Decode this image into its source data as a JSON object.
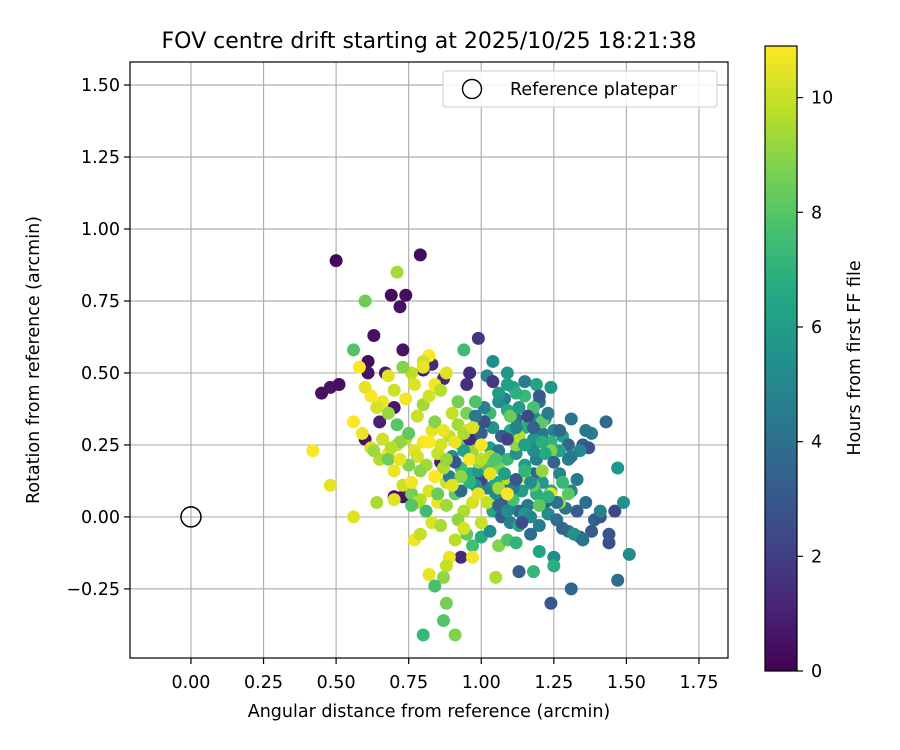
{
  "chart_data": {
    "type": "scatter",
    "title": "FOV centre drift starting at 2025/10/25 18:21:38",
    "xlabel": "Angular distance from reference (arcmin)",
    "ylabel": "Rotation from reference (arcmin)",
    "xlim": [
      -0.21,
      1.85
    ],
    "ylim": [
      -0.49,
      1.58
    ],
    "xticks": [
      "0.00",
      "0.25",
      "0.50",
      "0.75",
      "1.00",
      "1.25",
      "1.50",
      "1.75"
    ],
    "xtick_values": [
      0,
      0.25,
      0.5,
      0.75,
      1.0,
      1.25,
      1.5,
      1.75
    ],
    "yticks": [
      "−0.25",
      "0.00",
      "0.25",
      "0.50",
      "0.75",
      "1.00",
      "1.25",
      "1.50"
    ],
    "ytick_values": [
      -0.25,
      0,
      0.25,
      0.5,
      0.75,
      1.0,
      1.25,
      1.5
    ],
    "grid": true,
    "legend": {
      "position": "top-right",
      "entries": [
        "Reference platepar"
      ]
    },
    "reference_point": {
      "x": 0.0,
      "y": 0.0,
      "label": "Reference platepar"
    },
    "colorbar": {
      "label": "Hours from first FF file",
      "range": [
        0,
        10.9
      ],
      "ticks": [
        "0",
        "2",
        "4",
        "6",
        "8",
        "10"
      ],
      "tick_values": [
        0,
        2,
        4,
        6,
        8,
        10
      ],
      "colormap": [
        "#440154",
        "#482475",
        "#414487",
        "#355f8d",
        "#2a788e",
        "#21918c",
        "#22a884",
        "#44bf70",
        "#7ad151",
        "#bddf26",
        "#fde725"
      ]
    },
    "points": [
      [
        0.5,
        0.89,
        0.2
      ],
      [
        0.79,
        0.91,
        0.3
      ],
      [
        0.69,
        0.77,
        0.3
      ],
      [
        0.74,
        0.77,
        0.4
      ],
      [
        0.72,
        0.73,
        0.5
      ],
      [
        0.63,
        0.63,
        0.5
      ],
      [
        0.61,
        0.54,
        0.3
      ],
      [
        0.73,
        0.58,
        0.6
      ],
      [
        0.45,
        0.43,
        0.5
      ],
      [
        0.48,
        0.45,
        0.6
      ],
      [
        0.51,
        0.46,
        0.4
      ],
      [
        0.61,
        0.5,
        0.6
      ],
      [
        0.67,
        0.5,
        0.8
      ],
      [
        0.7,
        0.38,
        0.7
      ],
      [
        0.65,
        0.33,
        1.0
      ],
      [
        0.6,
        0.27,
        0.5
      ],
      [
        0.8,
        0.51,
        0.9
      ],
      [
        0.87,
        0.48,
        1.2
      ],
      [
        0.83,
        0.53,
        1.3
      ],
      [
        0.95,
        0.46,
        1.5
      ],
      [
        0.99,
        0.62,
        1.8
      ],
      [
        0.96,
        0.5,
        1.4
      ],
      [
        0.7,
        0.07,
        0.4
      ],
      [
        0.73,
        0.07,
        0.6
      ],
      [
        0.86,
        0.19,
        1.0
      ],
      [
        0.93,
        -0.14,
        1.2
      ],
      [
        1.13,
        -0.19,
        3.3
      ],
      [
        1.24,
        -0.3,
        3.0
      ],
      [
        1.31,
        -0.25,
        3.6
      ],
      [
        1.47,
        -0.22,
        3.9
      ],
      [
        1.51,
        -0.13,
        5.3
      ],
      [
        1.47,
        0.17,
        5.7
      ],
      [
        1.46,
        0.02,
        2.3
      ],
      [
        1.44,
        -0.09,
        2.6
      ],
      [
        1.49,
        0.05,
        5.5
      ],
      [
        1.43,
        0.33,
        3.8
      ],
      [
        1.38,
        0.29,
        4.6
      ],
      [
        1.36,
        0.3,
        4.3
      ],
      [
        1.35,
        0.25,
        3.4
      ],
      [
        1.31,
        0.34,
        4.2
      ],
      [
        1.24,
        0.45,
        5.9
      ],
      [
        1.19,
        0.46,
        6.4
      ],
      [
        1.15,
        0.47,
        4.6
      ],
      [
        1.09,
        0.5,
        5.7
      ],
      [
        1.04,
        0.54,
        5.4
      ],
      [
        1.02,
        0.49,
        5.0
      ],
      [
        1.04,
        0.47,
        1.7
      ],
      [
        1.08,
        0.41,
        4.5
      ],
      [
        1.11,
        0.45,
        6.5
      ],
      [
        1.2,
        0.4,
        4.0
      ],
      [
        1.18,
        0.35,
        5.2
      ],
      [
        1.22,
        0.34,
        5.8
      ],
      [
        1.25,
        0.3,
        4.9
      ],
      [
        1.28,
        0.28,
        6.1
      ],
      [
        1.3,
        0.25,
        3.7
      ],
      [
        1.33,
        0.13,
        4.5
      ],
      [
        1.31,
        0.09,
        5.0
      ],
      [
        1.29,
        0.03,
        4.1
      ],
      [
        1.33,
        0.02,
        3.2
      ],
      [
        1.36,
        0.05,
        3.9
      ],
      [
        1.39,
        -0.01,
        3.5
      ],
      [
        1.41,
        0.0,
        2.9
      ],
      [
        1.38,
        -0.05,
        3.1
      ],
      [
        1.34,
        -0.07,
        3.8
      ],
      [
        1.3,
        -0.05,
        4.4
      ],
      [
        1.25,
        -0.14,
        5.3
      ],
      [
        1.2,
        -0.12,
        6.3
      ],
      [
        1.25,
        -0.17,
        6.8
      ],
      [
        1.18,
        -0.19,
        7.2
      ],
      [
        1.22,
        0.05,
        3.3
      ],
      [
        1.19,
        0.08,
        6.9
      ],
      [
        1.16,
        0.04,
        4.3
      ],
      [
        1.13,
        0.02,
        3.7
      ],
      [
        1.1,
        0.04,
        4.8
      ],
      [
        1.07,
        0.06,
        2.5
      ],
      [
        1.05,
        0.08,
        5.1
      ],
      [
        1.02,
        0.1,
        4.9
      ],
      [
        1.0,
        0.13,
        2.2
      ],
      [
        0.98,
        0.11,
        5.6
      ],
      [
        0.96,
        0.15,
        6.7
      ],
      [
        0.93,
        0.17,
        7.5
      ],
      [
        0.9,
        0.21,
        5.2
      ],
      [
        0.93,
        0.25,
        8.5
      ],
      [
        0.97,
        0.27,
        4.0
      ],
      [
        1.0,
        0.29,
        3.4
      ],
      [
        1.03,
        0.24,
        6.0
      ],
      [
        1.06,
        0.23,
        4.2
      ],
      [
        1.09,
        0.2,
        7.3
      ],
      [
        1.12,
        0.22,
        5.5
      ],
      [
        1.15,
        0.18,
        6.1
      ],
      [
        1.18,
        0.15,
        3.6
      ],
      [
        1.21,
        0.12,
        5.9
      ],
      [
        1.24,
        0.09,
        6.4
      ],
      [
        1.27,
        0.15,
        5.0
      ],
      [
        1.3,
        0.2,
        4.7
      ],
      [
        1.27,
        0.23,
        6.2
      ],
      [
        1.24,
        0.26,
        7.0
      ],
      [
        1.21,
        0.29,
        4.4
      ],
      [
        1.18,
        0.27,
        5.6
      ],
      [
        1.15,
        0.31,
        6.8
      ],
      [
        1.12,
        0.34,
        4.1
      ],
      [
        1.09,
        0.37,
        6.6
      ],
      [
        1.06,
        0.4,
        5.3
      ],
      [
        1.03,
        0.36,
        7.4
      ],
      [
        1.01,
        0.38,
        4.8
      ],
      [
        0.98,
        0.4,
        7.8
      ],
      [
        0.95,
        0.36,
        8.7
      ],
      [
        0.92,
        0.32,
        9.4
      ],
      [
        0.89,
        0.28,
        9.9
      ],
      [
        0.86,
        0.25,
        10.2
      ],
      [
        0.83,
        0.3,
        10.5
      ],
      [
        0.8,
        0.26,
        10.8
      ],
      [
        0.77,
        0.23,
        10.4
      ],
      [
        0.74,
        0.27,
        9.8
      ],
      [
        0.71,
        0.25,
        10.1
      ],
      [
        0.68,
        0.22,
        10.7
      ],
      [
        0.65,
        0.2,
        9.6
      ],
      [
        0.62,
        0.24,
        10.3
      ],
      [
        0.59,
        0.29,
        10.6
      ],
      [
        0.56,
        0.33,
        10.9
      ],
      [
        0.42,
        0.23,
        10.8
      ],
      [
        0.48,
        0.11,
        10.5
      ],
      [
        0.56,
        0.0,
        10.4
      ],
      [
        0.64,
        0.05,
        9.5
      ],
      [
        0.68,
        0.2,
        8.5
      ],
      [
        0.7,
        0.16,
        10.6
      ],
      [
        0.72,
        0.26,
        9.1
      ],
      [
        0.75,
        0.29,
        8.2
      ],
      [
        0.78,
        0.35,
        10.0
      ],
      [
        0.8,
        0.39,
        9.3
      ],
      [
        0.82,
        0.42,
        10.2
      ],
      [
        0.84,
        0.46,
        10.7
      ],
      [
        0.86,
        0.44,
        9.7
      ],
      [
        0.88,
        0.5,
        10.4
      ],
      [
        0.82,
        0.56,
        10.9
      ],
      [
        0.8,
        0.54,
        10.1
      ],
      [
        0.76,
        0.5,
        9.8
      ],
      [
        0.73,
        0.52,
        8.9
      ],
      [
        0.7,
        0.44,
        10.0
      ],
      [
        0.68,
        0.49,
        10.4
      ],
      [
        0.66,
        0.4,
        10.6
      ],
      [
        0.64,
        0.38,
        10.2
      ],
      [
        0.62,
        0.42,
        10.8
      ],
      [
        0.6,
        0.45,
        10.5
      ],
      [
        0.58,
        0.52,
        10.9
      ],
      [
        0.56,
        0.58,
        7.9
      ],
      [
        0.6,
        0.75,
        8.5
      ],
      [
        0.71,
        0.85,
        9.4
      ],
      [
        0.68,
        0.36,
        9.2
      ],
      [
        0.71,
        0.32,
        8.0
      ],
      [
        0.74,
        0.41,
        10.7
      ],
      [
        0.77,
        0.46,
        10.3
      ],
      [
        0.8,
        0.52,
        10.5
      ],
      [
        0.84,
        0.33,
        8.9
      ],
      [
        0.87,
        0.3,
        10.6
      ],
      [
        0.9,
        0.36,
        9.9
      ],
      [
        0.92,
        0.4,
        8.6
      ],
      [
        0.94,
        0.58,
        7.4
      ],
      [
        0.95,
        0.3,
        10.3
      ],
      [
        0.97,
        0.23,
        9.3
      ],
      [
        1.0,
        0.25,
        10.8
      ],
      [
        1.03,
        0.21,
        9.5
      ],
      [
        1.06,
        0.17,
        8.7
      ],
      [
        1.09,
        0.13,
        9.8
      ],
      [
        1.12,
        0.25,
        9.0
      ],
      [
        1.1,
        0.35,
        8.4
      ],
      [
        1.13,
        0.28,
        9.7
      ],
      [
        1.15,
        0.14,
        10.1
      ],
      [
        1.18,
        0.11,
        8.3
      ],
      [
        1.21,
        0.16,
        9.1
      ],
      [
        1.24,
        0.08,
        10.5
      ],
      [
        1.27,
        0.05,
        9.2
      ],
      [
        1.3,
        0.08,
        8.1
      ],
      [
        1.24,
        0.23,
        8.8
      ],
      [
        1.21,
        0.33,
        8.2
      ],
      [
        1.18,
        0.38,
        7.7
      ],
      [
        1.15,
        0.42,
        7.3
      ],
      [
        1.12,
        0.43,
        6.9
      ],
      [
        1.09,
        0.46,
        6.1
      ],
      [
        1.06,
        0.43,
        5.9
      ],
      [
        0.97,
        0.05,
        10.2
      ],
      [
        0.94,
        0.02,
        9.6
      ],
      [
        0.91,
        0.08,
        8.3
      ],
      [
        0.88,
        0.12,
        10.0
      ],
      [
        0.85,
        0.05,
        10.6
      ],
      [
        0.82,
        0.09,
        10.3
      ],
      [
        0.79,
        0.06,
        9.7
      ],
      [
        0.76,
        0.08,
        8.6
      ],
      [
        0.73,
        0.11,
        10.1
      ],
      [
        0.7,
        0.06,
        10.4
      ],
      [
        0.77,
        -0.08,
        10.7
      ],
      [
        0.79,
        -0.06,
        9.9
      ],
      [
        0.83,
        -0.02,
        10.3
      ],
      [
        0.86,
        -0.03,
        9.5
      ],
      [
        0.89,
        -0.14,
        10.6
      ],
      [
        0.92,
        -0.01,
        9.1
      ],
      [
        0.95,
        -0.06,
        8.2
      ],
      [
        0.97,
        -0.1,
        7.6
      ],
      [
        1.0,
        -0.07,
        6.7
      ],
      [
        1.03,
        -0.05,
        5.3
      ],
      [
        1.06,
        -0.1,
        8.9
      ],
      [
        1.09,
        -0.08,
        7.9
      ],
      [
        1.12,
        -0.09,
        7.1
      ],
      [
        1.05,
        -0.21,
        9.6
      ],
      [
        0.87,
        -0.21,
        9.1
      ],
      [
        0.82,
        -0.2,
        10.5
      ],
      [
        0.84,
        -0.24,
        7.7
      ],
      [
        0.88,
        -0.3,
        8.6
      ],
      [
        0.87,
        -0.36,
        7.9
      ],
      [
        0.8,
        -0.41,
        7.2
      ],
      [
        0.91,
        -0.41,
        8.8
      ],
      [
        0.88,
        -0.17,
        9.9
      ],
      [
        1.0,
        -0.02,
        10.0
      ],
      [
        1.04,
        0.02,
        6.3
      ],
      [
        1.07,
        0.0,
        3.1
      ],
      [
        1.1,
        -0.02,
        4.7
      ],
      [
        1.13,
        -0.03,
        6.6
      ],
      [
        1.15,
        0.01,
        5.7
      ],
      [
        1.17,
        -0.06,
        3.9
      ],
      [
        1.2,
        -0.03,
        4.5
      ],
      [
        1.23,
        0.01,
        5.2
      ],
      [
        1.26,
        -0.01,
        4.0
      ],
      [
        1.28,
        -0.04,
        3.6
      ],
      [
        1.32,
        -0.06,
        5.5
      ],
      [
        1.35,
        -0.08,
        4.2
      ],
      [
        1.41,
        0.02,
        4.8
      ],
      [
        1.44,
        -0.06,
        3.0
      ],
      [
        1.37,
        0.24,
        2.8
      ],
      [
        1.34,
        0.23,
        5.1
      ],
      [
        1.31,
        0.21,
        4.3
      ],
      [
        1.27,
        0.3,
        3.8
      ],
      [
        1.23,
        0.36,
        4.6
      ],
      [
        1.2,
        0.42,
        3.1
      ],
      [
        1.16,
        0.35,
        2.4
      ],
      [
        1.13,
        0.38,
        5.9
      ],
      [
        1.1,
        0.3,
        6.7
      ],
      [
        1.07,
        0.28,
        3.2
      ],
      [
        1.04,
        0.31,
        5.5
      ],
      [
        1.01,
        0.33,
        2.7
      ],
      [
        0.98,
        0.35,
        4.4
      ],
      [
        0.96,
        0.27,
        1.4
      ],
      [
        0.94,
        0.23,
        6.2
      ],
      [
        0.91,
        0.19,
        2.9
      ],
      [
        0.89,
        0.14,
        4.6
      ],
      [
        0.93,
        0.09,
        3.7
      ],
      [
        0.96,
        0.12,
        7.0
      ],
      [
        0.99,
        0.16,
        5.8
      ],
      [
        1.02,
        0.18,
        8.0
      ],
      [
        1.05,
        0.12,
        6.4
      ],
      [
        1.08,
        0.09,
        3.9
      ],
      [
        1.11,
        0.06,
        7.7
      ],
      [
        1.14,
        0.09,
        6.0
      ],
      [
        1.17,
        0.12,
        5.4
      ],
      [
        1.19,
        0.2,
        4.8
      ],
      [
        1.22,
        0.22,
        6.6
      ],
      [
        1.25,
        0.19,
        3.5
      ],
      [
        1.28,
        0.12,
        7.3
      ],
      [
        1.26,
        0.05,
        4.1
      ],
      [
        1.23,
        0.07,
        6.9
      ],
      [
        1.2,
        0.04,
        8.1
      ],
      [
        1.17,
        0.0,
        5.0
      ],
      [
        1.14,
        -0.02,
        2.6
      ],
      [
        1.11,
        0.1,
        4.4
      ],
      [
        1.08,
        0.15,
        6.1
      ],
      [
        1.05,
        0.2,
        7.9
      ],
      [
        0.99,
        0.19,
        9.2
      ],
      [
        0.96,
        0.2,
        10.8
      ],
      [
        0.93,
        0.14,
        9.0
      ],
      [
        0.9,
        0.11,
        10.4
      ],
      [
        0.87,
        0.17,
        9.6
      ],
      [
        0.84,
        0.14,
        10.9
      ],
      [
        0.81,
        0.18,
        9.4
      ],
      [
        0.78,
        0.21,
        10.2
      ],
      [
        0.75,
        0.18,
        8.8
      ],
      [
        0.72,
        0.2,
        10.5
      ],
      [
        0.69,
        0.24,
        9.7
      ],
      [
        0.66,
        0.27,
        10.1
      ],
      [
        0.63,
        0.23,
        9.3
      ],
      [
        0.76,
        0.12,
        10.7
      ],
      [
        0.79,
        0.16,
        9.0
      ],
      [
        0.82,
        0.26,
        10.9
      ],
      [
        0.85,
        0.22,
        10.0
      ],
      [
        0.88,
        0.2,
        9.2
      ],
      [
        0.91,
        0.26,
        10.6
      ],
      [
        0.94,
        0.29,
        9.5
      ],
      [
        0.97,
        0.31,
        10.3
      ],
      [
        1.0,
        0.2,
        9.8
      ],
      [
        1.03,
        0.15,
        10.5
      ],
      [
        1.06,
        0.1,
        9.4
      ],
      [
        1.09,
        0.08,
        10.8
      ],
      [
        1.02,
        0.05,
        9.9
      ],
      [
        0.99,
        0.08,
        10.5
      ],
      [
        0.94,
        -0.04,
        10.2
      ],
      [
        0.91,
        -0.08,
        9.8
      ],
      [
        0.97,
        -0.14,
        10.7
      ],
      [
        0.85,
        0.08,
        8.4
      ],
      [
        0.88,
        0.04,
        9.3
      ],
      [
        0.78,
        0.05,
        9.6
      ],
      [
        0.81,
        0.02,
        7.5
      ],
      [
        0.76,
        0.04,
        8.0
      ],
      [
        1.06,
        0.04,
        3.5
      ],
      [
        1.09,
        0.02,
        5.2
      ],
      [
        1.12,
        0.13,
        3.0
      ],
      [
        1.15,
        0.16,
        7.1
      ],
      [
        1.18,
        0.23,
        5.3
      ],
      [
        1.21,
        0.26,
        6.8
      ],
      [
        1.18,
        0.31,
        3.4
      ],
      [
        1.15,
        0.25,
        6.0
      ],
      [
        1.12,
        0.31,
        4.9
      ],
      [
        1.09,
        0.27,
        2.1
      ]
    ]
  }
}
